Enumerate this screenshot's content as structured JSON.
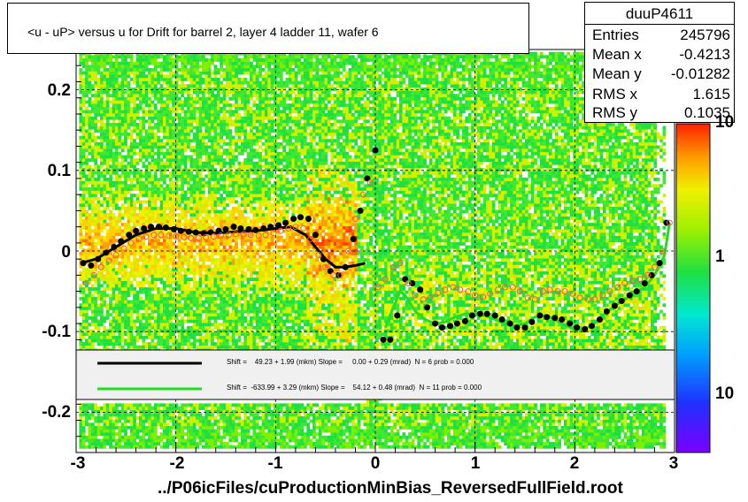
{
  "chart_data": {
    "type": "heatmap",
    "title": "<u - uP>       versus   u for Drift for barrel 2, layer 4 ladder 11, wafer 6",
    "xlabel": "../P06icFiles/cuProductionMinBias_ReversedFullField.root",
    "ylabel": "",
    "xlim": [
      -3,
      3
    ],
    "ylim": [
      -0.25,
      0.25
    ],
    "x_ticks": [
      "-3",
      "-2",
      "-1",
      "0",
      "1",
      "2",
      "3"
    ],
    "y_ticks": [
      "0.2",
      "0.1",
      "0",
      "-0.1",
      "-0.2"
    ],
    "z_ticks": [
      "10",
      "1",
      "10"
    ],
    "grid": true,
    "stats": {
      "name": "duuP4611",
      "rows": [
        {
          "label": "Entries",
          "value": "245796"
        },
        {
          "label": "Mean x",
          "value": "-0.4213"
        },
        {
          "label": "Mean y",
          "value": "-0.01282"
        },
        {
          "label": "RMS x",
          "value": "1.615"
        },
        {
          "label": "RMS y",
          "value": "0.1035"
        }
      ]
    },
    "legend": [
      {
        "color": "#000000",
        "text": "Shift =    49.23 + 1.99 (mkm) Slope =     0.00 + 0.29 (mrad)  N = 6 prob = 0.000"
      },
      {
        "color": "#22dd22",
        "text": "Shift =  -633.99 + 3.29 (mkm) Slope =    54.12 + 0.48 (mrad)  N = 11 prob = 0.000"
      }
    ],
    "series": [
      {
        "marker": "filled-circle",
        "color": "#000000",
        "x": [
          -2.93,
          -2.85,
          -2.78,
          -2.7,
          -2.62,
          -2.55,
          -2.47,
          -2.4,
          -2.32,
          -2.25,
          -2.17,
          -2.1,
          -2.02,
          -1.95,
          -1.87,
          -1.8,
          -1.72,
          -1.65,
          -1.57,
          -1.5,
          -1.42,
          -1.35,
          -1.27,
          -1.2,
          -1.12,
          -1.05,
          -0.97,
          -0.9,
          -0.82,
          -0.75,
          -0.67,
          -0.6,
          -0.52,
          -0.45,
          -0.37,
          -0.3,
          -0.22,
          -0.15,
          -0.08,
          0.0,
          0.08,
          0.15,
          0.22,
          0.3,
          0.37,
          0.45,
          0.52,
          0.6,
          0.67,
          0.75,
          0.82,
          0.9,
          0.97,
          1.05,
          1.12,
          1.2,
          1.27,
          1.35,
          1.42,
          1.5,
          1.57,
          1.65,
          1.72,
          1.8,
          1.87,
          1.95,
          2.02,
          2.1,
          2.17,
          2.25,
          2.32,
          2.4,
          2.47,
          2.55,
          2.62,
          2.7,
          2.77,
          2.85,
          2.92
        ],
        "y": [
          -0.015,
          -0.018,
          -0.01,
          -0.002,
          0.005,
          0.012,
          0.02,
          0.025,
          0.028,
          0.03,
          0.03,
          0.029,
          0.027,
          0.025,
          0.024,
          0.023,
          0.022,
          0.023,
          0.025,
          0.027,
          0.03,
          0.028,
          0.027,
          0.026,
          0.028,
          0.03,
          0.032,
          0.035,
          0.04,
          0.042,
          0.04,
          0.02,
          -0.01,
          -0.025,
          -0.03,
          -0.02,
          0.015,
          0.05,
          0.09,
          0.125,
          -0.11,
          -0.11,
          -0.08,
          -0.035,
          -0.04,
          -0.048,
          -0.07,
          -0.09,
          -0.095,
          -0.093,
          -0.09,
          -0.087,
          -0.08,
          -0.078,
          -0.078,
          -0.08,
          -0.085,
          -0.09,
          -0.095,
          -0.095,
          -0.088,
          -0.08,
          -0.082,
          -0.083,
          -0.085,
          -0.09,
          -0.095,
          -0.097,
          -0.093,
          -0.085,
          -0.075,
          -0.068,
          -0.062,
          -0.055,
          -0.05,
          -0.04,
          -0.03,
          -0.015,
          0.035
        ]
      },
      {
        "marker": "open-circle",
        "color": "#ff5050",
        "x": [
          -2.9,
          -2.82,
          -2.75,
          -2.67,
          -2.6,
          -2.52,
          -2.45,
          -2.37,
          -2.3,
          -2.22,
          -2.15,
          -2.07,
          -2.0,
          -1.92,
          -1.85,
          -1.77,
          -1.7,
          -1.62,
          -1.55,
          -1.47,
          -1.4,
          -1.32,
          -1.25,
          -1.17,
          -1.1,
          -1.02,
          -0.95,
          -0.87,
          -0.8,
          -0.72,
          -0.65,
          -0.57,
          -0.5,
          -0.42,
          -0.35,
          -0.27,
          -0.2,
          -0.12,
          -0.05,
          0.03,
          0.1,
          0.18,
          0.25,
          0.33,
          0.4,
          0.48,
          0.55,
          0.63,
          0.7,
          0.78,
          0.85,
          0.93,
          1.0,
          1.08,
          1.15,
          1.23,
          1.3,
          1.38,
          1.45,
          1.53,
          1.6,
          1.68,
          1.75,
          1.83,
          1.9,
          1.98,
          2.05,
          2.13,
          2.2,
          2.28,
          2.35,
          2.43,
          2.5,
          2.58,
          2.65,
          2.73,
          2.8,
          2.88,
          2.95
        ],
        "y": [
          -0.04,
          -0.03,
          -0.02,
          -0.012,
          -0.005,
          0.003,
          0.01,
          0.015,
          0.018,
          0.02,
          0.02,
          0.019,
          0.018,
          0.017,
          0.016,
          0.016,
          0.017,
          0.018,
          0.019,
          0.02,
          0.021,
          0.021,
          0.02,
          0.019,
          0.02,
          0.022,
          0.025,
          0.028,
          0.03,
          0.028,
          0.015,
          -0.005,
          -0.02,
          -0.03,
          -0.03,
          0.0,
          0.04,
          0.07,
          0.085,
          -0.045,
          -0.035,
          -0.02,
          -0.015,
          -0.04,
          -0.055,
          -0.06,
          -0.058,
          -0.052,
          -0.048,
          -0.045,
          -0.048,
          -0.05,
          -0.055,
          -0.057,
          -0.053,
          -0.048,
          -0.045,
          -0.045,
          -0.05,
          -0.058,
          -0.06,
          -0.05,
          -0.048,
          -0.05,
          -0.05,
          -0.053,
          -0.058,
          -0.06,
          -0.06,
          -0.055,
          -0.05,
          -0.045,
          -0.04,
          -0.037,
          -0.035,
          -0.03,
          -0.02,
          0.0,
          0.035
        ]
      }
    ],
    "fit_curves": [
      {
        "color": "#000000",
        "x": [
          -2.95,
          -2.8,
          -2.6,
          -2.4,
          -2.2,
          -2.0,
          -1.8,
          -1.6,
          -1.4,
          -1.2,
          -1.0,
          -0.85,
          -0.7,
          -0.6,
          -0.5,
          -0.4,
          -0.3,
          -0.2,
          -0.1
        ],
        "y": [
          -0.015,
          -0.01,
          0.005,
          0.02,
          0.028,
          0.028,
          0.023,
          0.022,
          0.024,
          0.025,
          0.028,
          0.03,
          0.02,
          0.005,
          -0.01,
          -0.02,
          -0.02,
          -0.018,
          -0.015
        ]
      },
      {
        "color": "#22dd22",
        "x": [
          0.1,
          0.18,
          0.25,
          0.3,
          0.4,
          0.5,
          0.6,
          0.7,
          0.8,
          0.9,
          1.0,
          1.1,
          1.2,
          1.3,
          1.4,
          1.5,
          1.6,
          1.7,
          1.8,
          1.9,
          2.0,
          2.1,
          2.2,
          2.3,
          2.4,
          2.5,
          2.6,
          2.7,
          2.8,
          2.9,
          2.95
        ],
        "y": [
          -0.095,
          -0.07,
          -0.05,
          -0.055,
          -0.075,
          -0.085,
          -0.09,
          -0.088,
          -0.082,
          -0.078,
          -0.078,
          -0.08,
          -0.085,
          -0.09,
          -0.093,
          -0.09,
          -0.082,
          -0.08,
          -0.085,
          -0.092,
          -0.097,
          -0.097,
          -0.09,
          -0.078,
          -0.068,
          -0.06,
          -0.052,
          -0.045,
          -0.03,
          -0.005,
          0.035
        ]
      }
    ]
  }
}
